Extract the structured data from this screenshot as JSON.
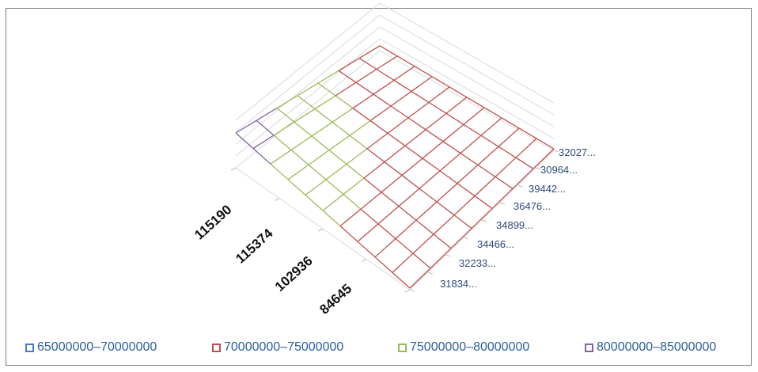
{
  "chart_data": {
    "type": "surface-3d-wireframe",
    "x_categories": [
      "115190",
      "115374",
      "102936",
      "84645"
    ],
    "y_categories": [
      "32027...",
      "30964...",
      "39442...",
      "36476...",
      "34899...",
      "34466...",
      "32233...",
      "31834..."
    ],
    "legend": [
      {
        "label": "65000000–70000000",
        "color": "#4a7ebb"
      },
      {
        "label": "70000000–75000000",
        "color": "#c0504d"
      },
      {
        "label": "75000000–80000000",
        "color": "#9bbb59"
      },
      {
        "label": "80000000–85000000",
        "color": "#8064a2"
      }
    ],
    "grid": true,
    "legend_position": "bottom"
  }
}
